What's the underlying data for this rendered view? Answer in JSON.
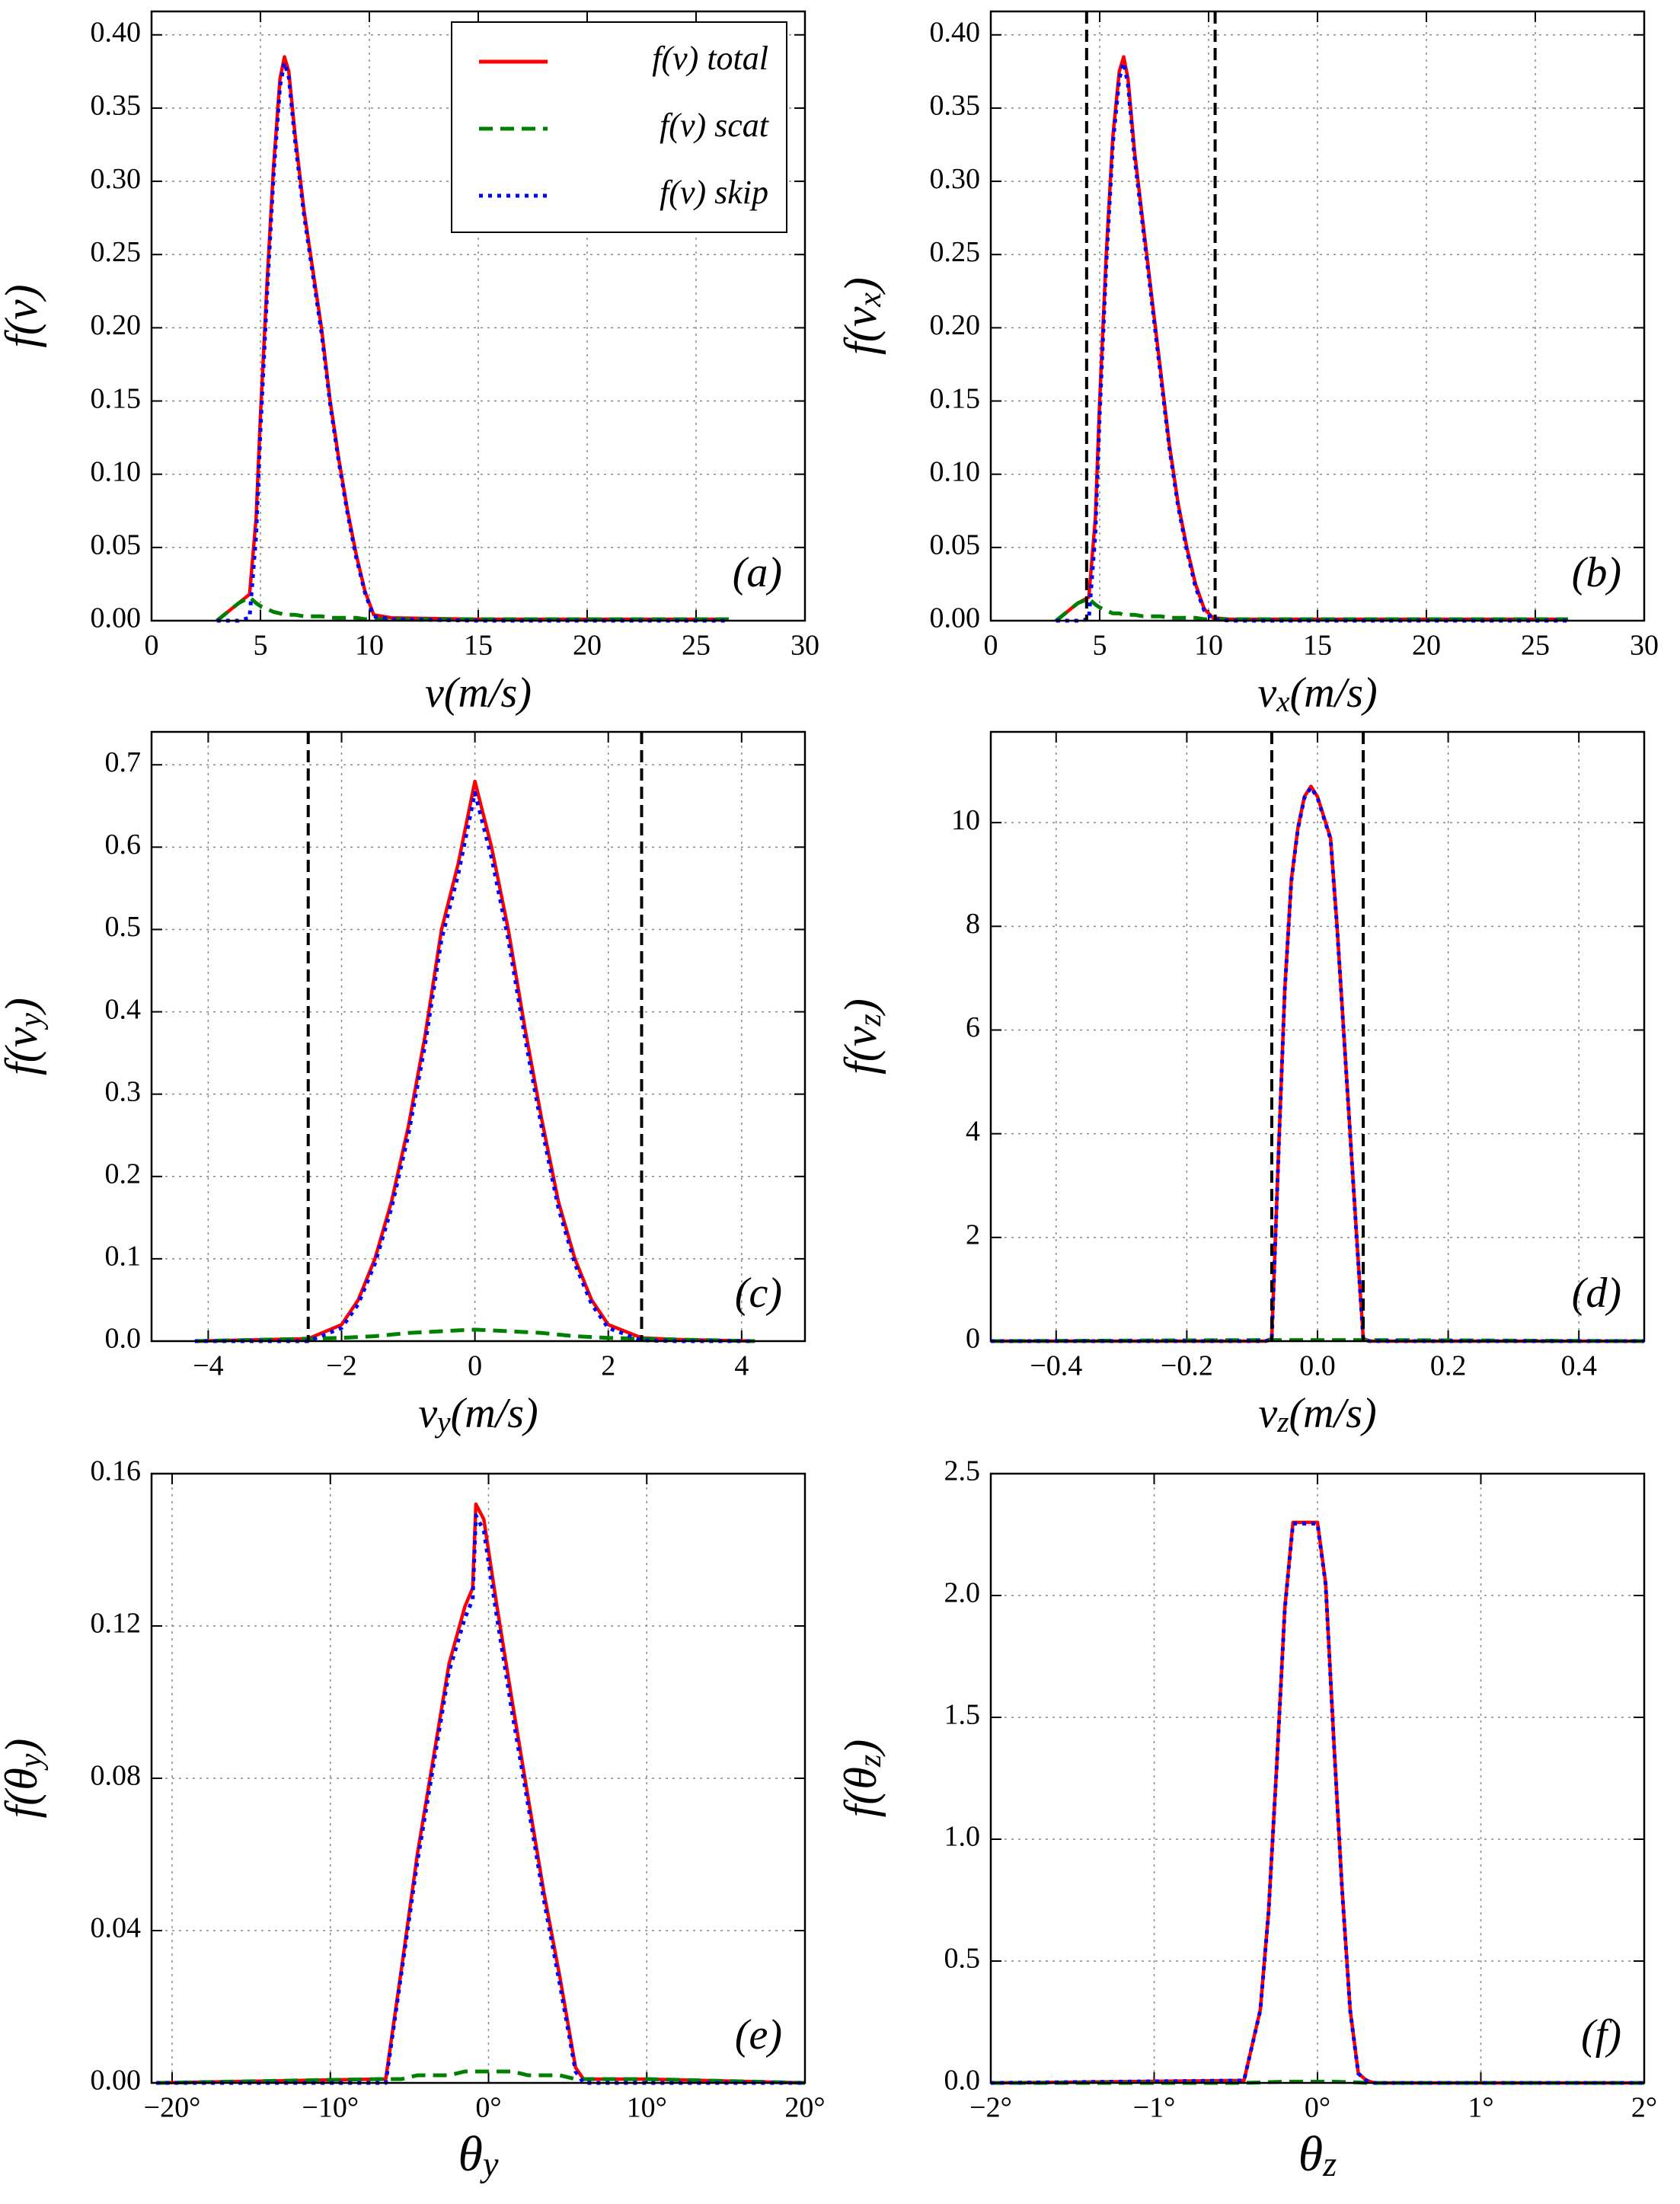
{
  "chart_data": [
    {
      "type": "line",
      "annotation": "(a)",
      "xlabel": [
        "v(m/s)"
      ],
      "ylabel": [
        "f(v)"
      ],
      "xlim": [
        0,
        30
      ],
      "ylim": [
        0,
        0.416
      ],
      "xticks": [
        0,
        5,
        10,
        15,
        20,
        25,
        30
      ],
      "yticks": [
        {
          "value": 0,
          "label": "0.00"
        },
        {
          "value": 0.05,
          "label": "0.05"
        },
        {
          "value": 0.1,
          "label": "0.10"
        },
        {
          "value": 0.15,
          "label": "0.15"
        },
        {
          "value": 0.2,
          "label": "0.20"
        },
        {
          "value": 0.25,
          "label": "0.25"
        },
        {
          "value": 0.3,
          "label": "0.30"
        },
        {
          "value": 0.35,
          "label": "0.35"
        },
        {
          "value": 0.4,
          "label": "0.40"
        }
      ],
      "grid": true,
      "legend": "upper right",
      "x": [
        3.0,
        3.5,
        4.0,
        4.5,
        4.8,
        5.0,
        5.3,
        5.6,
        5.9,
        6.1,
        6.3,
        6.6,
        7.0,
        7.4,
        7.8,
        8.2,
        8.6,
        9.0,
        9.4,
        9.8,
        10.2,
        11,
        15,
        20,
        26.5
      ],
      "series": [
        {
          "name": "f(v) total",
          "color": "#ff0000",
          "linestyle": "solid",
          "values": [
            0,
            0.006,
            0.012,
            0.018,
            0.07,
            0.14,
            0.23,
            0.31,
            0.37,
            0.385,
            0.375,
            0.33,
            0.28,
            0.24,
            0.2,
            0.15,
            0.11,
            0.075,
            0.045,
            0.02,
            0.004,
            0.002,
            0.001,
            0.001,
            0.001
          ]
        },
        {
          "name": "f(v) scat",
          "color": "#008000",
          "linestyle": "dashed",
          "values": [
            0,
            0.006,
            0.012,
            0.016,
            0.012,
            0.01,
            0.008,
            0.006,
            0.005,
            0.004,
            0.004,
            0.004,
            0.003,
            0.003,
            0.003,
            0.002,
            0.002,
            0.002,
            0.002,
            0.001,
            0.001,
            0.001,
            0.001,
            0.001,
            0.001
          ]
        },
        {
          "name": "f(v) skip",
          "color": "#0000ff",
          "linestyle": "dotted",
          "values": [
            0,
            0,
            0,
            0.002,
            0.058,
            0.13,
            0.222,
            0.304,
            0.365,
            0.381,
            0.371,
            0.326,
            0.277,
            0.237,
            0.197,
            0.148,
            0.108,
            0.073,
            0.043,
            0.019,
            0.003,
            0.001,
            0,
            0,
            0
          ]
        }
      ]
    },
    {
      "type": "line",
      "annotation": "(b)",
      "xlabel": [
        "v",
        "x",
        "(m/s)"
      ],
      "ylabel": [
        "f(v",
        "x",
        ")"
      ],
      "xlim": [
        0,
        30
      ],
      "ylim": [
        0,
        0.416
      ],
      "xticks": [
        0,
        5,
        10,
        15,
        20,
        25,
        30
      ],
      "yticks": [
        {
          "value": 0,
          "label": "0.00"
        },
        {
          "value": 0.05,
          "label": "0.05"
        },
        {
          "value": 0.1,
          "label": "0.10"
        },
        {
          "value": 0.15,
          "label": "0.15"
        },
        {
          "value": 0.2,
          "label": "0.20"
        },
        {
          "value": 0.25,
          "label": "0.25"
        },
        {
          "value": 0.3,
          "label": "0.30"
        },
        {
          "value": 0.35,
          "label": "0.35"
        },
        {
          "value": 0.4,
          "label": "0.40"
        }
      ],
      "grid": true,
      "vlines": [
        4.4,
        10.3
      ],
      "x": [
        3.0,
        3.5,
        4.0,
        4.5,
        4.8,
        5.0,
        5.3,
        5.6,
        5.9,
        6.1,
        6.3,
        6.6,
        7.0,
        7.4,
        7.8,
        8.2,
        8.6,
        9.0,
        9.4,
        9.8,
        10.2,
        11,
        15,
        20,
        26.5
      ],
      "series": [
        {
          "color": "#ff0000",
          "linestyle": "solid",
          "values": [
            0,
            0.006,
            0.012,
            0.016,
            0.07,
            0.15,
            0.25,
            0.33,
            0.375,
            0.385,
            0.37,
            0.32,
            0.27,
            0.22,
            0.17,
            0.12,
            0.08,
            0.05,
            0.025,
            0.008,
            0.002,
            0.001,
            0.001,
            0.001,
            0.001
          ]
        },
        {
          "color": "#008000",
          "linestyle": "dashed",
          "values": [
            0,
            0.006,
            0.012,
            0.015,
            0.011,
            0.009,
            0.007,
            0.005,
            0.005,
            0.004,
            0.004,
            0.004,
            0.003,
            0.003,
            0.003,
            0.002,
            0.002,
            0.002,
            0.002,
            0.001,
            0.001,
            0.001,
            0.001,
            0.001,
            0.001
          ]
        },
        {
          "color": "#0000ff",
          "linestyle": "dotted",
          "values": [
            0,
            0,
            0,
            0.001,
            0.059,
            0.141,
            0.243,
            0.325,
            0.37,
            0.381,
            0.366,
            0.316,
            0.267,
            0.217,
            0.167,
            0.118,
            0.078,
            0.048,
            0.023,
            0.007,
            0.001,
            0,
            0,
            0,
            0
          ]
        }
      ]
    },
    {
      "type": "line",
      "annotation": "(c)",
      "xlabel": [
        "v",
        "y",
        "(m/s)"
      ],
      "ylabel": [
        "f(v",
        "y",
        ")"
      ],
      "xlim": [
        -4.85,
        4.95
      ],
      "ylim": [
        0,
        0.74
      ],
      "xticks": [
        {
          "value": -4,
          "label": "−4"
        },
        {
          "value": -2,
          "label": "−2"
        },
        0,
        2,
        4
      ],
      "yticks": [
        {
          "value": 0,
          "label": "0.0"
        },
        0.1,
        0.2,
        0.3,
        0.4,
        0.5,
        0.6,
        0.7
      ],
      "grid": true,
      "vlines": [
        -2.5,
        2.5
      ],
      "x": [
        -4.2,
        -3,
        -2.5,
        -2,
        -1.75,
        -1.5,
        -1.25,
        -1,
        -0.75,
        -0.5,
        -0.25,
        0,
        0.25,
        0.5,
        0.75,
        1,
        1.25,
        1.5,
        1.75,
        2,
        2.5,
        3,
        4.2
      ],
      "series": [
        {
          "color": "#ff0000",
          "linestyle": "solid",
          "values": [
            0,
            0.002,
            0.003,
            0.02,
            0.05,
            0.1,
            0.17,
            0.26,
            0.37,
            0.5,
            0.58,
            0.68,
            0.6,
            0.5,
            0.38,
            0.27,
            0.17,
            0.1,
            0.05,
            0.02,
            0.004,
            0.002,
            0
          ]
        },
        {
          "color": "#008000",
          "linestyle": "dashed",
          "values": [
            0,
            0.002,
            0.003,
            0.004,
            0.005,
            0.006,
            0.008,
            0.01,
            0.011,
            0.012,
            0.013,
            0.014,
            0.013,
            0.012,
            0.011,
            0.01,
            0.008,
            0.006,
            0.005,
            0.004,
            0.003,
            0.002,
            0
          ]
        },
        {
          "color": "#0000ff",
          "linestyle": "dotted",
          "values": [
            0,
            0,
            0,
            0.016,
            0.045,
            0.094,
            0.162,
            0.25,
            0.359,
            0.488,
            0.567,
            0.666,
            0.587,
            0.488,
            0.369,
            0.26,
            0.162,
            0.094,
            0.045,
            0.016,
            0.001,
            0,
            0
          ]
        }
      ]
    },
    {
      "type": "line",
      "annotation": "(d)",
      "xlabel": [
        "v",
        "z",
        "(m/s)"
      ],
      "ylabel": [
        "f(v",
        "z",
        ")"
      ],
      "xlim": [
        -0.5,
        0.5
      ],
      "ylim": [
        0,
        11.75
      ],
      "xticks": [
        {
          "value": -0.4,
          "label": "−0.4"
        },
        {
          "value": -0.2,
          "label": "−0.2"
        },
        {
          "value": 0,
          "label": "0.0"
        },
        0.2,
        0.4
      ],
      "yticks": [
        0,
        2,
        4,
        6,
        8,
        10
      ],
      "grid": true,
      "vlines": [
        -0.07,
        0.07
      ],
      "x": [
        -0.5,
        -0.08,
        -0.07,
        -0.06,
        -0.05,
        -0.04,
        -0.03,
        -0.02,
        -0.01,
        0,
        0.01,
        0.02,
        0.03,
        0.04,
        0.05,
        0.06,
        0.07,
        0.08,
        0.5
      ],
      "series": [
        {
          "color": "#ff0000",
          "linestyle": "solid",
          "values": [
            0,
            0,
            0.05,
            3.5,
            6.8,
            8.9,
            9.9,
            10.5,
            10.7,
            10.5,
            10.1,
            9.7,
            8.0,
            6.0,
            4.0,
            2.0,
            0.05,
            0,
            0
          ]
        },
        {
          "color": "#008000",
          "linestyle": "dashed",
          "values": [
            0,
            0.02,
            0.02,
            0.02,
            0.02,
            0.02,
            0.02,
            0.02,
            0.02,
            0.02,
            0.02,
            0.02,
            0.02,
            0.02,
            0.02,
            0.02,
            0.02,
            0.02,
            0
          ]
        },
        {
          "color": "#0000ff",
          "linestyle": "dotted",
          "values": [
            0,
            0,
            0.03,
            3.48,
            6.78,
            8.88,
            9.88,
            10.48,
            10.68,
            10.48,
            10.08,
            9.68,
            7.98,
            5.98,
            3.98,
            1.98,
            0.03,
            0,
            0
          ]
        }
      ]
    },
    {
      "type": "line",
      "annotation": "(e)",
      "xlabel": [
        "θ",
        "y"
      ],
      "ylabel": [
        "f(θ",
        "y",
        ")"
      ],
      "xlim": [
        -21.3,
        20
      ],
      "ylim": [
        0,
        0.16
      ],
      "xticks": [
        {
          "value": -20,
          "label": "−20°"
        },
        {
          "value": -10,
          "label": "−10°"
        },
        {
          "value": 0,
          "label": "0°"
        },
        {
          "value": 10,
          "label": "10°"
        },
        {
          "value": 20,
          "label": "20°"
        }
      ],
      "yticks": [
        {
          "value": 0,
          "label": "0.00"
        },
        0.04,
        0.08,
        0.12,
        0.16
      ],
      "grid": true,
      "x": [
        -21,
        -7,
        -6.5,
        -5.5,
        -4.5,
        -3.5,
        -2.5,
        -1.5,
        -1,
        -0.8,
        -0.3,
        0.5,
        1.5,
        2.5,
        3.5,
        4.5,
        5.5,
        6,
        10,
        20
      ],
      "series": [
        {
          "color": "#ff0000",
          "linestyle": "solid",
          "values": [
            0,
            0.001,
            0.001,
            0.03,
            0.06,
            0.085,
            0.11,
            0.125,
            0.13,
            0.152,
            0.148,
            0.126,
            0.1,
            0.075,
            0.05,
            0.028,
            0.004,
            0.001,
            0.001,
            0
          ]
        },
        {
          "color": "#008000",
          "linestyle": "dashed",
          "values": [
            0,
            0.001,
            0.001,
            0.001,
            0.002,
            0.002,
            0.002,
            0.003,
            0.003,
            0.003,
            0.003,
            0.003,
            0.003,
            0.002,
            0.002,
            0.002,
            0.001,
            0.001,
            0.001,
            0
          ]
        },
        {
          "color": "#0000ff",
          "linestyle": "dotted",
          "values": [
            0,
            0,
            0,
            0.029,
            0.058,
            0.083,
            0.108,
            0.122,
            0.127,
            0.149,
            0.145,
            0.123,
            0.097,
            0.073,
            0.048,
            0.026,
            0.003,
            0,
            0,
            0
          ]
        }
      ]
    },
    {
      "type": "line",
      "annotation": "(f)",
      "xlabel": [
        "θ",
        "z"
      ],
      "ylabel": [
        "f(θ",
        "z",
        ")"
      ],
      "xlim": [
        -2,
        2
      ],
      "ylim": [
        0,
        2.5
      ],
      "xticks": [
        {
          "value": -2,
          "label": "−2°"
        },
        {
          "value": -1,
          "label": "−1°"
        },
        {
          "value": 0,
          "label": "0°"
        },
        {
          "value": 1,
          "label": "1°"
        },
        {
          "value": 2,
          "label": "2°"
        }
      ],
      "yticks": [
        {
          "value": 0,
          "label": "0.0"
        },
        0.5,
        {
          "value": 1,
          "label": "1.0"
        },
        1.5,
        {
          "value": 2,
          "label": "2.0"
        },
        2.5
      ],
      "grid": true,
      "x": [
        -2,
        -0.45,
        -0.35,
        -0.3,
        -0.25,
        -0.2,
        -0.15,
        -0.1,
        0,
        0.05,
        0.1,
        0.15,
        0.2,
        0.25,
        0.3,
        0.35,
        2
      ],
      "series": [
        {
          "color": "#ff0000",
          "linestyle": "solid",
          "values": [
            0,
            0.01,
            0.3,
            0.7,
            1.3,
            1.95,
            2.3,
            2.3,
            2.3,
            2.05,
            1.4,
            0.8,
            0.3,
            0.04,
            0.01,
            0,
            0
          ]
        },
        {
          "color": "#008000",
          "linestyle": "dashed",
          "values": [
            0,
            0,
            0.002,
            0.003,
            0.004,
            0.005,
            0.005,
            0.005,
            0.005,
            0.005,
            0.005,
            0.004,
            0.003,
            0.002,
            0,
            0,
            0
          ]
        },
        {
          "color": "#0000ff",
          "linestyle": "dotted",
          "values": [
            0,
            0.01,
            0.298,
            0.697,
            1.296,
            1.945,
            2.295,
            2.295,
            2.295,
            2.045,
            1.395,
            0.796,
            0.297,
            0.038,
            0.01,
            0,
            0
          ]
        }
      ]
    }
  ]
}
